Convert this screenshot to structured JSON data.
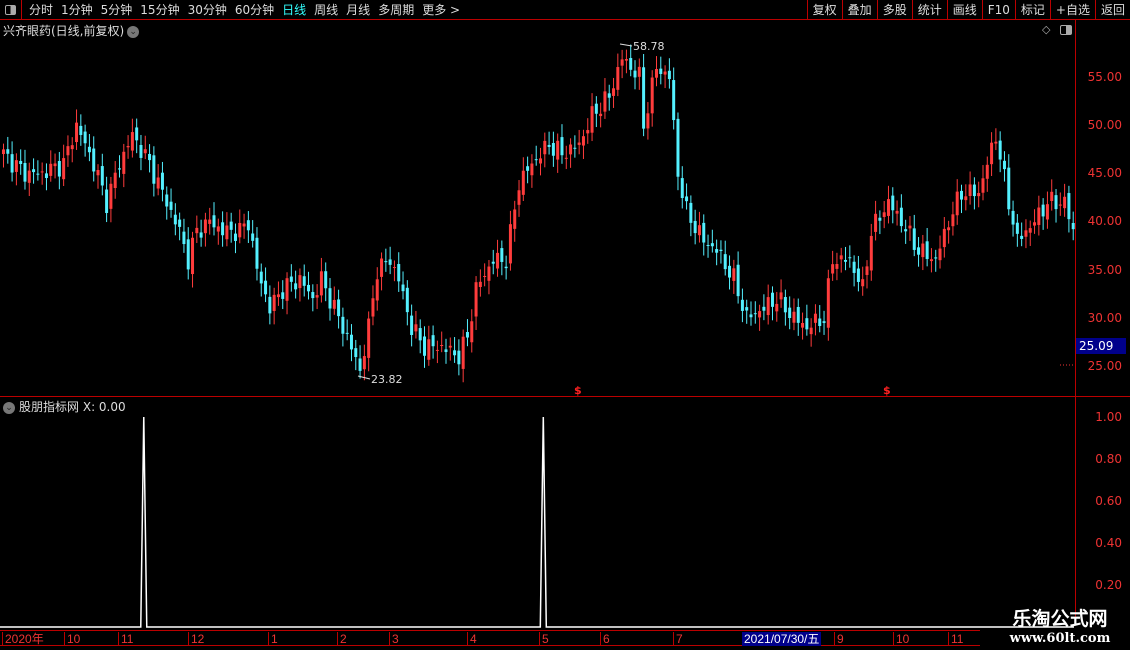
{
  "toolbar": {
    "periods": [
      "分时",
      "1分钟",
      "5分钟",
      "15分钟",
      "30分钟",
      "60分钟",
      "日线",
      "周线",
      "月线",
      "多周期",
      "更多 >"
    ],
    "active": "日线",
    "right_buttons": [
      "复权",
      "叠加",
      "多股",
      "统计",
      "画线",
      "F10",
      "标记",
      "+自选",
      "返回"
    ]
  },
  "main": {
    "title": "兴齐眼药(日线,前复权)",
    "y_ticks": [
      "55.00",
      "50.00",
      "45.00",
      "40.00",
      "35.00",
      "30.00",
      "25.00"
    ],
    "current_price": "25.09",
    "high_label": "58.78",
    "low_label": "23.82",
    "signal_marker": "$"
  },
  "indicator": {
    "title": "股朋指标网",
    "value_label": "X: 0.00",
    "y_ticks": [
      "1.00",
      "0.80",
      "0.60",
      "0.40",
      "0.20"
    ]
  },
  "xaxis": {
    "labels": [
      "2020年",
      "10",
      "11",
      "12",
      "1",
      "2",
      "3",
      "4",
      "5",
      "6",
      "7",
      "9",
      "10",
      "11"
    ],
    "cursor_date": "2021/07/30/五"
  },
  "watermark": {
    "line1": "乐淘公式网",
    "line2": "www.60lt.com"
  },
  "colors": {
    "up": "#ff3c3c",
    "down": "#54f0ff",
    "axis": "#bb0000",
    "signal": "#ffffff"
  },
  "chart_data": {
    "type": "candlestick",
    "ylim": [
      24,
      59
    ],
    "close_path": [
      [
        0,
        47
      ],
      [
        5,
        45
      ],
      [
        9,
        45
      ],
      [
        14,
        46
      ],
      [
        17,
        50
      ],
      [
        21,
        46
      ],
      [
        24,
        42
      ],
      [
        27,
        46
      ],
      [
        30,
        49
      ],
      [
        34,
        46
      ],
      [
        37,
        43
      ],
      [
        41,
        39
      ],
      [
        43,
        36
      ],
      [
        45,
        39
      ],
      [
        48,
        40
      ],
      [
        51,
        39
      ],
      [
        55,
        39
      ],
      [
        57,
        40
      ],
      [
        59,
        35
      ],
      [
        62,
        31
      ],
      [
        65,
        33
      ],
      [
        69,
        34
      ],
      [
        72,
        32
      ],
      [
        74,
        34
      ],
      [
        77,
        31
      ],
      [
        80,
        28
      ],
      [
        83,
        24.5
      ],
      [
        85,
        29
      ],
      [
        87,
        35
      ],
      [
        90,
        36
      ],
      [
        92,
        34
      ],
      [
        95,
        29
      ],
      [
        98,
        27
      ],
      [
        102,
        27
      ],
      [
        106,
        26
      ],
      [
        108,
        28
      ],
      [
        110,
        33
      ],
      [
        114,
        36
      ],
      [
        117,
        36
      ],
      [
        120,
        44
      ],
      [
        123,
        46
      ],
      [
        127,
        48
      ],
      [
        130,
        47
      ],
      [
        134,
        48
      ],
      [
        137,
        51
      ],
      [
        141,
        53
      ],
      [
        144,
        57
      ],
      [
        148,
        55
      ],
      [
        149,
        50
      ],
      [
        152,
        56
      ],
      [
        155,
        55
      ],
      [
        157,
        45
      ],
      [
        159,
        41
      ],
      [
        163,
        38
      ],
      [
        166,
        37
      ],
      [
        170,
        34
      ],
      [
        173,
        30
      ],
      [
        177,
        31
      ],
      [
        180,
        32
      ],
      [
        184,
        30
      ],
      [
        187,
        29
      ],
      [
        191,
        30
      ],
      [
        193,
        36
      ],
      [
        197,
        36
      ],
      [
        200,
        33
      ],
      [
        202,
        39
      ],
      [
        206,
        42
      ],
      [
        209,
        40
      ],
      [
        213,
        37
      ],
      [
        217,
        36
      ],
      [
        220,
        40
      ],
      [
        223,
        43
      ],
      [
        227,
        43
      ],
      [
        229,
        46
      ],
      [
        231,
        49
      ],
      [
        234,
        42
      ],
      [
        236,
        38
      ],
      [
        240,
        40
      ],
      [
        243,
        42
      ],
      [
        247,
        42
      ],
      [
        249,
        39
      ]
    ],
    "indicator_spikes": {
      "bar_index": [
        33,
        126
      ],
      "value": 1.0
    }
  }
}
